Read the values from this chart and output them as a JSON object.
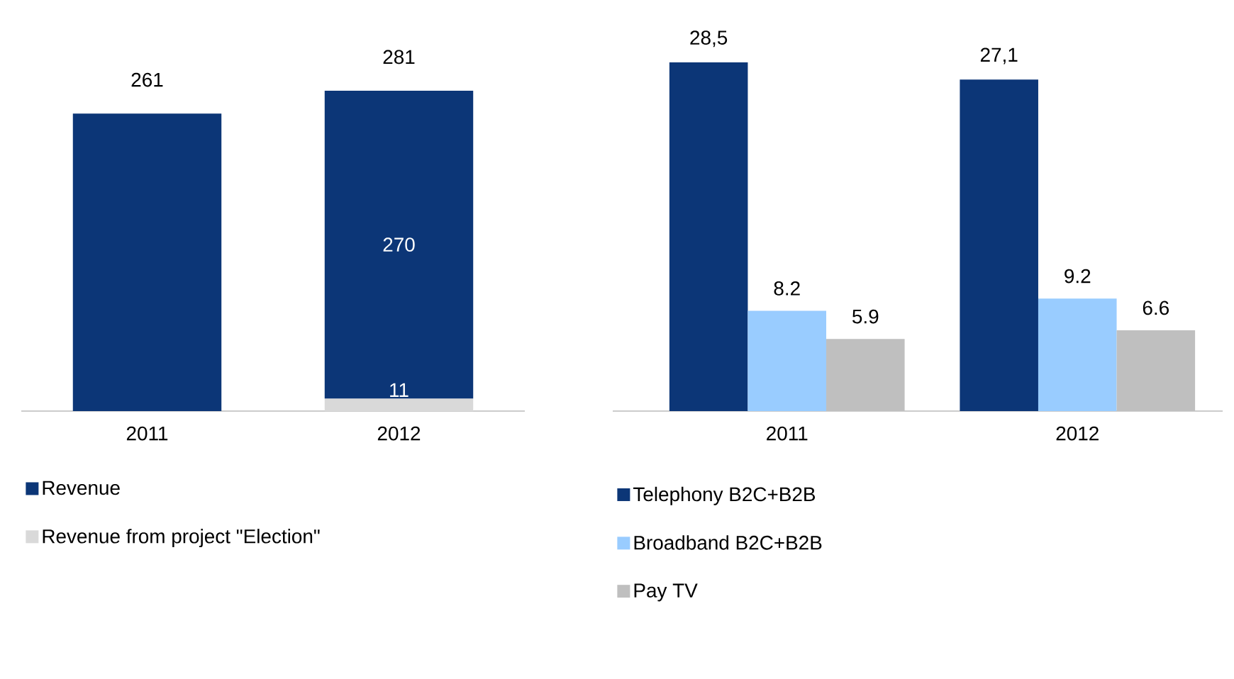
{
  "chart_data": [
    {
      "type": "bar",
      "stacked": true,
      "categories": [
        "2011",
        "2012"
      ],
      "series": [
        {
          "name": "Revenue from project \"Election\"",
          "color": "#d9d9d9",
          "values": [
            null,
            11
          ],
          "value_labels": [
            null,
            "11"
          ]
        },
        {
          "name": "Revenue",
          "color": "#0c3677",
          "values": [
            261,
            270
          ],
          "value_labels": [
            null,
            "270"
          ]
        }
      ],
      "totals": [
        "261",
        "281"
      ],
      "tick_labels": "x",
      "legend": "bottom"
    },
    {
      "type": "bar",
      "categories": [
        "2011",
        "2012"
      ],
      "series": [
        {
          "name": "Telephony B2C+B2B",
          "color": "#0c3677",
          "values": [
            28.5,
            27.1
          ],
          "value_labels": [
            "28,5",
            "27,1"
          ]
        },
        {
          "name": "Broadband B2C+B2B",
          "color": "#99ccff",
          "values": [
            8.2,
            9.2
          ],
          "value_labels": [
            "8.2",
            "9.2"
          ]
        },
        {
          "name": "Pay TV",
          "color": "#bfbfbf",
          "values": [
            5.9,
            6.6
          ],
          "value_labels": [
            "5.9",
            "6.6"
          ]
        }
      ],
      "tick_labels": "x",
      "legend": "bottom"
    }
  ]
}
